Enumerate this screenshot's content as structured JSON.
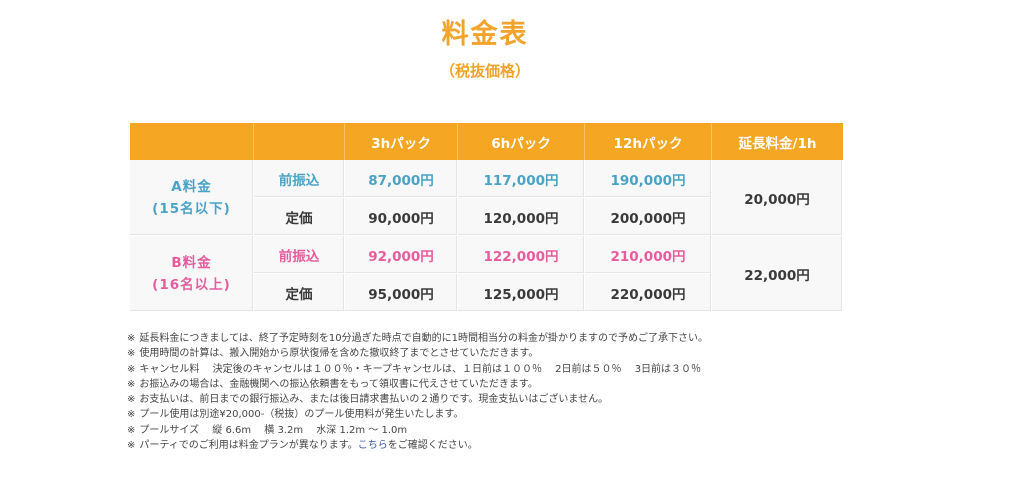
{
  "title": "料金表",
  "subtitle": "（税抜価格）",
  "colors": {
    "accent": "#f5a623",
    "blue_text": "#4aa3c7",
    "pink_text": "#e85c9d",
    "cell_bg": "#f8f8f8"
  },
  "table": {
    "headers": [
      "",
      "",
      "3hパック",
      "6hパック",
      "12hパック",
      "延長料金/1h"
    ],
    "groups": [
      {
        "label_line1": "A料金",
        "label_line2": "(15名以下)",
        "rows": [
          {
            "type": "前振込",
            "values": [
              "87,000円",
              "117,000円",
              "190,000円"
            ]
          },
          {
            "type": "定価",
            "values": [
              "90,000円",
              "120,000円",
              "200,000円"
            ]
          }
        ],
        "extension": "20,000円"
      },
      {
        "label_line1": "B料金",
        "label_line2": "(16名以上)",
        "rows": [
          {
            "type": "前振込",
            "values": [
              "92,000円",
              "122,000円",
              "210,000円"
            ]
          },
          {
            "type": "定価",
            "values": [
              "95,000円",
              "125,000円",
              "220,000円"
            ]
          }
        ],
        "extension": "22,000円"
      }
    ]
  },
  "notes": {
    "mark": "※",
    "items": [
      "延長料金につきましては、終了予定時刻を10分過ぎた時点で自動的に1時間相当分の料金が掛かりますので予めご了承下さい。",
      "使用時間の計算は、搬入開始から原状復帰を含めた撤収終了までとさせていただきます。",
      "キャンセル料　 決定後のキャンセルは１００％・キープキャンセルは、１日前は１００％　 2日前は５０％　 3日前は３０％",
      "お振込みの場合は、金融機関への振込依頼書をもって領収書に代えさせていただきます。",
      "お支払いは、前日までの銀行振込み、または後日請求書払いの２通りです。現金支払いはございません。",
      "プール使用は別途¥20,000-（税抜）のプール使用料が発生いたします。",
      "プールサイズ　 縦 6.6m　 横 3.2m　 水深 1.2m 〜 1.0m"
    ],
    "last_prefix": "パーティでのご利用は料金プランが異なります。",
    "last_link": "こちら",
    "last_suffix": "をご確認ください。"
  }
}
